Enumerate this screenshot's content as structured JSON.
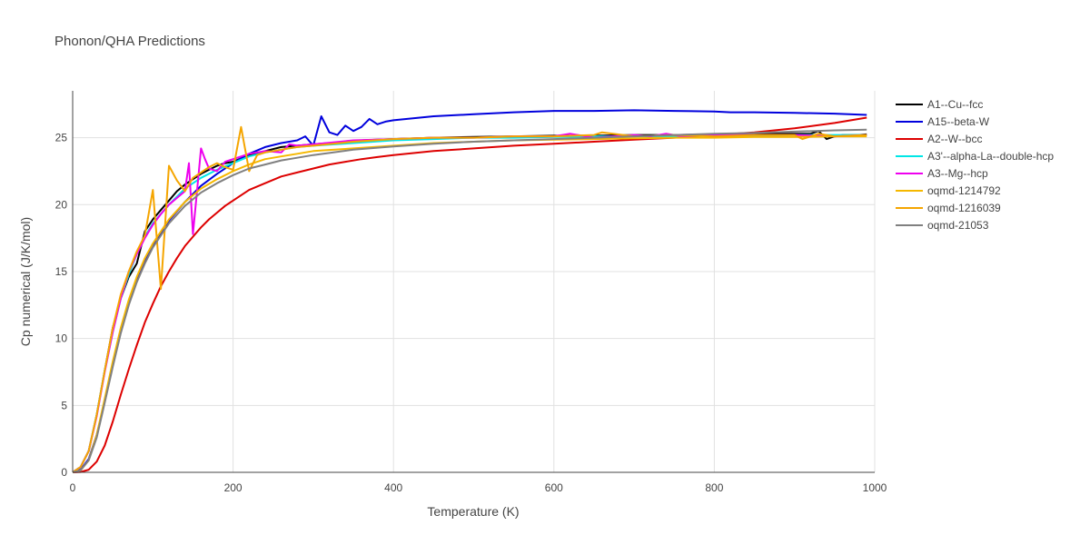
{
  "chart_data": {
    "type": "line",
    "title": "Phonon/QHA Predictions",
    "xlabel": "Temperature (K)",
    "ylabel": "Cp numerical (J/K/mol)",
    "xlim": [
      0,
      1000
    ],
    "ylim": [
      0,
      28.5
    ],
    "xticks": [
      0,
      200,
      400,
      600,
      800,
      1000
    ],
    "yticks": [
      0,
      5,
      10,
      15,
      20,
      25
    ],
    "grid": true,
    "legend_position": "right",
    "series": [
      {
        "name": "A1--Cu--fcc",
        "color": "#000000",
        "x": [
          0,
          10,
          20,
          30,
          40,
          50,
          60,
          70,
          80,
          90,
          100,
          110,
          120,
          130,
          140,
          150,
          160,
          170,
          180,
          190,
          200,
          220,
          240,
          260,
          280,
          300,
          320,
          340,
          360,
          380,
          400,
          450,
          500,
          550,
          600,
          650,
          700,
          750,
          800,
          850,
          900,
          920,
          930,
          940,
          950,
          960,
          970,
          980,
          990
        ],
        "y": [
          0,
          0.4,
          1.6,
          4.3,
          7.6,
          10.8,
          13.0,
          14.6,
          15.6,
          18.0,
          18.9,
          19.6,
          20.3,
          21.0,
          21.5,
          21.9,
          22.3,
          22.6,
          22.9,
          23.1,
          23.2,
          23.7,
          24.0,
          24.3,
          24.4,
          24.5,
          24.6,
          24.7,
          24.8,
          24.85,
          24.9,
          25.0,
          25.05,
          25.1,
          25.15,
          25.15,
          25.2,
          25.2,
          25.25,
          25.3,
          25.3,
          25.3,
          25.5,
          24.9,
          25.1,
          25.2,
          25.2,
          25.2,
          25.25
        ]
      },
      {
        "name": "A15--beta-W",
        "color": "#0000dd",
        "x": [
          0,
          10,
          20,
          30,
          40,
          50,
          60,
          70,
          80,
          90,
          100,
          120,
          140,
          160,
          180,
          200,
          220,
          240,
          260,
          280,
          290,
          300,
          310,
          320,
          330,
          340,
          350,
          360,
          370,
          380,
          390,
          400,
          450,
          500,
          550,
          600,
          650,
          700,
          750,
          800,
          820,
          850,
          900,
          950,
          990
        ],
        "y": [
          0,
          0.2,
          1.0,
          2.8,
          5.3,
          8.0,
          10.5,
          12.6,
          14.3,
          15.7,
          16.9,
          18.8,
          20.2,
          21.4,
          22.3,
          23.1,
          23.8,
          24.3,
          24.6,
          24.8,
          25.1,
          24.4,
          26.6,
          25.4,
          25.2,
          25.9,
          25.5,
          25.8,
          26.4,
          26.0,
          26.2,
          26.3,
          26.6,
          26.75,
          26.9,
          27.0,
          27.0,
          27.05,
          27.0,
          26.95,
          26.9,
          26.9,
          26.85,
          26.8,
          26.7
        ]
      },
      {
        "name": "A2--W--bcc",
        "color": "#dd0000",
        "x": [
          0,
          10,
          20,
          30,
          40,
          50,
          60,
          70,
          80,
          90,
          100,
          110,
          120,
          130,
          140,
          150,
          160,
          170,
          180,
          190,
          200,
          220,
          240,
          260,
          280,
          300,
          320,
          340,
          360,
          380,
          400,
          450,
          500,
          550,
          600,
          650,
          700,
          750,
          800,
          850,
          900,
          950,
          990
        ],
        "y": [
          0,
          0.03,
          0.2,
          0.8,
          2.0,
          3.8,
          5.8,
          7.7,
          9.5,
          11.2,
          12.6,
          13.9,
          15.0,
          16.0,
          16.9,
          17.6,
          18.3,
          18.9,
          19.4,
          19.9,
          20.3,
          21.1,
          21.6,
          22.1,
          22.4,
          22.7,
          23.0,
          23.2,
          23.4,
          23.55,
          23.7,
          24.0,
          24.2,
          24.4,
          24.55,
          24.7,
          24.85,
          25.0,
          25.2,
          25.4,
          25.7,
          26.1,
          26.5
        ]
      },
      {
        "name": "A3'--alpha-La--double-hcp",
        "color": "#00e6e6",
        "x": [
          0,
          10,
          20,
          30,
          40,
          50,
          60,
          70,
          80,
          90,
          100,
          120,
          140,
          160,
          180,
          200,
          220,
          240,
          260,
          280,
          300,
          350,
          400,
          450,
          500,
          550,
          600,
          650,
          700,
          750,
          800,
          850,
          900,
          950,
          990
        ],
        "y": [
          0,
          0.4,
          1.6,
          4.3,
          7.6,
          10.5,
          13.0,
          14.8,
          16.3,
          17.6,
          18.6,
          20.0,
          21.2,
          22.0,
          22.6,
          23.1,
          23.6,
          23.9,
          24.1,
          24.3,
          24.4,
          24.6,
          24.8,
          24.9,
          25.0,
          25.0,
          25.05,
          25.1,
          25.1,
          25.1,
          25.15,
          25.15,
          25.2,
          25.2,
          25.2
        ]
      },
      {
        "name": "A3--Mg--hcp",
        "color": "#ee00ee",
        "x": [
          0,
          10,
          20,
          30,
          40,
          50,
          60,
          70,
          80,
          90,
          100,
          110,
          120,
          130,
          140,
          145,
          150,
          155,
          160,
          165,
          170,
          180,
          190,
          200,
          220,
          240,
          260,
          270,
          280,
          300,
          350,
          400,
          450,
          500,
          550,
          600,
          620,
          650,
          700,
          720,
          740,
          760,
          800,
          850,
          900,
          950,
          990
        ],
        "y": [
          0,
          0.4,
          1.6,
          4.2,
          7.5,
          10.5,
          13.0,
          15.0,
          16.3,
          17.5,
          18.5,
          19.3,
          20.0,
          20.5,
          21.0,
          23.1,
          17.8,
          21.0,
          24.2,
          23.4,
          22.7,
          22.5,
          23.2,
          23.4,
          23.8,
          24.0,
          23.9,
          24.5,
          24.4,
          24.5,
          24.8,
          24.9,
          25.0,
          25.0,
          25.1,
          25.1,
          25.3,
          25.0,
          25.2,
          25.1,
          25.3,
          25.1,
          25.2,
          25.2,
          25.2,
          25.1,
          25.2
        ]
      },
      {
        "name": "oqmd-1214792",
        "color": "#f5b800",
        "x": [
          0,
          10,
          20,
          30,
          40,
          50,
          60,
          70,
          80,
          90,
          100,
          120,
          140,
          160,
          180,
          200,
          220,
          240,
          260,
          280,
          300,
          350,
          400,
          450,
          500,
          550,
          600,
          650,
          700,
          750,
          800,
          850,
          900,
          950,
          990
        ],
        "y": [
          0,
          0.15,
          0.9,
          2.8,
          5.5,
          8.3,
          10.8,
          12.9,
          14.6,
          16.0,
          17.1,
          18.9,
          20.2,
          21.2,
          21.9,
          22.5,
          23.0,
          23.4,
          23.6,
          23.8,
          24.0,
          24.2,
          24.4,
          24.6,
          24.7,
          24.8,
          24.85,
          24.9,
          24.95,
          25.0,
          25.0,
          25.05,
          25.05,
          25.1,
          25.1
        ]
      },
      {
        "name": "oqmd-1216039",
        "color": "#f5a500",
        "x": [
          0,
          10,
          20,
          30,
          40,
          50,
          60,
          70,
          80,
          90,
          100,
          110,
          120,
          130,
          140,
          150,
          160,
          170,
          180,
          190,
          200,
          210,
          220,
          230,
          240,
          260,
          280,
          300,
          350,
          400,
          450,
          500,
          550,
          600,
          650,
          660,
          700,
          750,
          800,
          850,
          900,
          910,
          930,
          950,
          990
        ],
        "y": [
          0,
          0.4,
          1.6,
          4.3,
          7.6,
          10.8,
          13.3,
          15.0,
          16.5,
          17.7,
          21.1,
          13.7,
          22.9,
          21.8,
          21.0,
          22.0,
          22.4,
          22.8,
          23.1,
          22.8,
          22.6,
          25.8,
          22.5,
          23.7,
          23.9,
          24.1,
          24.3,
          24.4,
          24.7,
          24.9,
          25.0,
          25.0,
          25.1,
          25.1,
          25.2,
          25.4,
          25.1,
          25.2,
          25.1,
          25.2,
          25.2,
          24.9,
          25.3,
          25.1,
          25.2
        ]
      },
      {
        "name": "oqmd-21053",
        "color": "#808080",
        "x": [
          0,
          10,
          20,
          30,
          40,
          50,
          60,
          70,
          80,
          90,
          100,
          120,
          140,
          160,
          180,
          200,
          220,
          240,
          260,
          280,
          300,
          350,
          400,
          450,
          500,
          550,
          600,
          650,
          700,
          750,
          800,
          850,
          900,
          950,
          990
        ],
        "y": [
          0,
          0.15,
          0.9,
          2.6,
          5.2,
          7.9,
          10.4,
          12.5,
          14.2,
          15.6,
          16.8,
          18.6,
          19.9,
          20.9,
          21.6,
          22.2,
          22.7,
          23.0,
          23.3,
          23.5,
          23.7,
          24.1,
          24.35,
          24.55,
          24.7,
          24.8,
          24.9,
          25.0,
          25.1,
          25.2,
          25.3,
          25.35,
          25.45,
          25.55,
          25.6
        ]
      }
    ]
  }
}
